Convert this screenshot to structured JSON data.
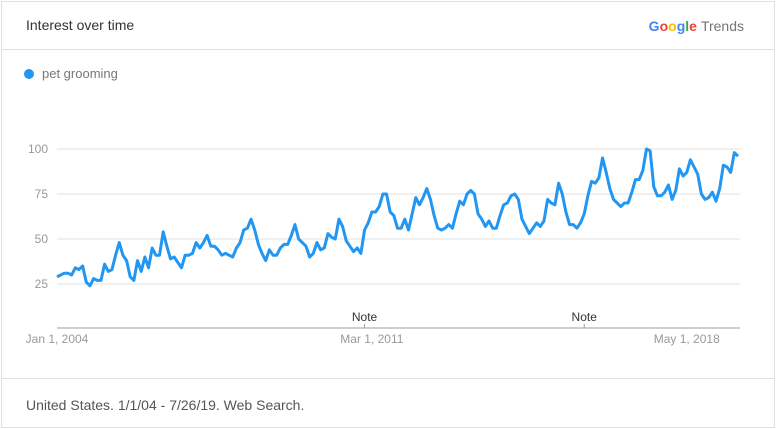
{
  "header": {
    "title": "Interest over time",
    "logo": "Google Trends",
    "logo_word1": "Google",
    "logo_word2": "Trends"
  },
  "footer": {
    "text": "United States. 1/1/04 - 7/26/19. Web Search."
  },
  "colors": {
    "series": "#2196f3",
    "grid": "#e0e0e0",
    "axis_text": "#999999"
  },
  "chart_data": {
    "type": "line",
    "title": "Interest over time",
    "start": "2004-01",
    "end": "2019-07",
    "frequency": "monthly",
    "ylim": [
      0,
      100
    ],
    "yticks": [
      25,
      50,
      75,
      100
    ],
    "xtick_labels": [
      "Jan 1, 2004",
      "Mar 1, 2011",
      "May 1, 2018"
    ],
    "annotations": [
      {
        "label": "Note",
        "date": "2011-01"
      },
      {
        "label": "Note",
        "date": "2016-01"
      }
    ],
    "grid": true,
    "legend_placement": "top-left",
    "series": [
      {
        "name": "pet grooming",
        "color": "#2196f3",
        "values": [
          29,
          30,
          31,
          31,
          30,
          34,
          33,
          35,
          26,
          24,
          28,
          27,
          27,
          36,
          32,
          33,
          41,
          48,
          41,
          38,
          29,
          27,
          38,
          32,
          40,
          34,
          45,
          41,
          41,
          54,
          46,
          39,
          40,
          37,
          34,
          41,
          41,
          42,
          48,
          45,
          48,
          52,
          46,
          46,
          44,
          41,
          42,
          41,
          40,
          45,
          48,
          55,
          56,
          61,
          55,
          47,
          42,
          38,
          44,
          41,
          41,
          45,
          47,
          47,
          52,
          58,
          50,
          48,
          46,
          40,
          42,
          48,
          44,
          45,
          53,
          51,
          50,
          61,
          57,
          49,
          46,
          43,
          45,
          42,
          55,
          59,
          65,
          65,
          68,
          75,
          75,
          65,
          63,
          56,
          56,
          61,
          55,
          64,
          73,
          69,
          73,
          78,
          72,
          63,
          56,
          55,
          56,
          58,
          56,
          64,
          71,
          69,
          75,
          77,
          75,
          64,
          61,
          57,
          60,
          56,
          56,
          63,
          69,
          70,
          74,
          75,
          72,
          61,
          57,
          53,
          56,
          59,
          57,
          60,
          72,
          70,
          69,
          81,
          75,
          65,
          58,
          58,
          56,
          59,
          64,
          74,
          82,
          81,
          84,
          95,
          87,
          78,
          72,
          70,
          68,
          70,
          70,
          76,
          83,
          83,
          88,
          100,
          99,
          79,
          74,
          74,
          76,
          80,
          72,
          77,
          89,
          85,
          87,
          94,
          90,
          86,
          75,
          72,
          73,
          76,
          71,
          78,
          91,
          90,
          87,
          98,
          96
        ]
      }
    ]
  }
}
